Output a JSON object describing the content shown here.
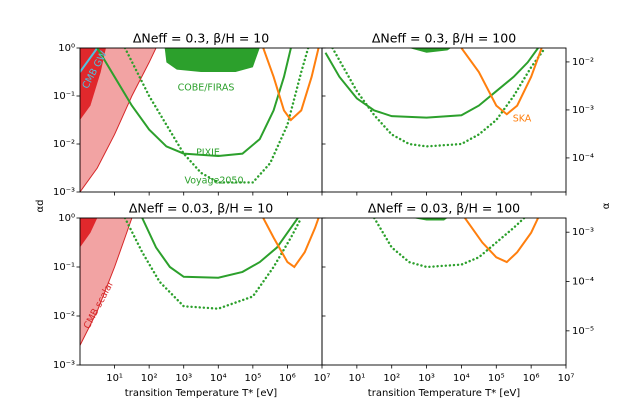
{
  "chart_data": [
    {
      "type": "line",
      "title": "ΔNeff = 0.3, β/H = 10",
      "ylabel": "αd",
      "xscale": "log",
      "yscale": "log",
      "xlim": [
        1,
        10000000.0
      ],
      "ylim": [
        0.001,
        1
      ],
      "xticks": [
        10,
        100,
        1000,
        10000.0,
        100000.0,
        1000000.0,
        10000000.0
      ],
      "yticks": [
        {
          "value": 1,
          "label": "10⁰"
        },
        {
          "value": 0.1,
          "label": "10⁻¹"
        },
        {
          "value": 0.01,
          "label": "10⁻²"
        },
        {
          "value": 0.001,
          "label": "10⁻³"
        }
      ],
      "series": [
        {
          "style": "fill",
          "color": "#f2a3a3",
          "edgecolor": "#d62728",
          "x": [
            1,
            3.16,
            10,
            31.6,
            100,
            158,
            1
          ],
          "values": [
            0.001,
            0.00316,
            0.0158,
            0.1,
            0.501,
            1,
            1
          ]
        },
        {
          "style": "fill",
          "color": "#e0282c",
          "x": [
            1,
            2,
            3.98,
            5.62,
            1
          ],
          "values": [
            0.0316,
            0.0631,
            0.316,
            1,
            1
          ]
        },
        {
          "name": "CMB GW",
          "style": "line",
          "color": "#4fc3e0",
          "x": [
            1,
            2,
            3.16
          ],
          "values": [
            0.316,
            0.631,
            1
          ]
        },
        {
          "name": "COBE/FIRAS",
          "style": "fill",
          "color": "#2ca02c",
          "x": [
            282,
            316,
            631,
            3160,
            31600,
            100000.0,
            158000.0
          ],
          "values": [
            1,
            0.501,
            0.355,
            0.316,
            0.316,
            0.398,
            1
          ]
        },
        {
          "name": "PIXIE",
          "style": "line",
          "color": "#2ca02c",
          "x": [
            3.16,
            10,
            31.6,
            100,
            316,
            1000,
            10000.0,
            50100.0,
            158000.0,
            398000.0,
            794000.0,
            1260000.0
          ],
          "values": [
            1,
            0.251,
            0.0631,
            0.02,
            0.00891,
            0.00631,
            0.00562,
            0.00631,
            0.0126,
            0.0501,
            0.251,
            1
          ]
        },
        {
          "name": "Voyage2050",
          "style": "dotted",
          "color": "#2ca02c",
          "x": [
            20,
            100,
            316,
            1000,
            3160,
            10000.0,
            100000.0,
            316000.0,
            1000000.0,
            2510000.0,
            3980000.0
          ],
          "values": [
            1,
            0.1,
            0.0251,
            0.00631,
            0.00251,
            0.00158,
            0.00158,
            0.00398,
            0.0251,
            0.316,
            1
          ]
        },
        {
          "style": "line",
          "color": "#ff7f0e",
          "x": [
            200000.0,
            398000.0,
            794000.0,
            1260000.0,
            2510000.0,
            5010000.0,
            7940000.0
          ],
          "values": [
            1,
            0.251,
            0.0501,
            0.0316,
            0.0501,
            0.251,
            1
          ]
        }
      ]
    },
    {
      "type": "line",
      "title": "ΔNeff = 0.3, β/H = 100",
      "y2label": "α",
      "xscale": "log",
      "yscale": "log",
      "xlim": [
        1,
        10000000.0
      ],
      "ylim": [
        0.001,
        1
      ],
      "y2lim": [
        1.95e-05,
        0.0195
      ],
      "xticks": [
        10,
        100,
        1000,
        10000.0,
        100000.0,
        1000000.0,
        10000000.0
      ],
      "yticks": [
        1,
        0.1,
        0.01,
        0.001
      ],
      "y2ticks": [
        {
          "value": 0.01,
          "label": "10⁻²"
        },
        {
          "value": 0.001,
          "label": "10⁻³"
        },
        {
          "value": 0.0001,
          "label": "10⁻⁴"
        }
      ],
      "series": [
        {
          "style": "fill",
          "color": "#2ca02c",
          "x": [
            316,
            1000,
            3980,
            5010
          ],
          "values": [
            1,
            0.794,
            0.891,
            1
          ]
        },
        {
          "style": "line",
          "color": "#2ca02c",
          "x": [
            1.26,
            3.16,
            10,
            31.6,
            100,
            1000,
            10000.0,
            31600.0,
            100000.0,
            316000.0,
            794000.0,
            1580000.0
          ],
          "values": [
            0.794,
            0.251,
            0.0891,
            0.0501,
            0.038,
            0.0355,
            0.0398,
            0.0631,
            0.126,
            0.251,
            0.501,
            1
          ]
        },
        {
          "style": "dotted",
          "color": "#2ca02c",
          "x": [
            2,
            10,
            31.6,
            100,
            316,
            1000,
            10000.0,
            31600.0,
            100000.0,
            316000.0,
            1000000.0,
            2510000.0
          ],
          "values": [
            1,
            0.126,
            0.0398,
            0.0158,
            0.01,
            0.00891,
            0.01,
            0.0158,
            0.0316,
            0.1,
            0.398,
            1
          ]
        },
        {
          "name": "SKA",
          "style": "line",
          "color": "#ff7f0e",
          "x": [
            10000.0,
            31600.0,
            100000.0,
            200000.0,
            398000.0,
            1000000.0,
            2000000.0
          ],
          "values": [
            1,
            0.316,
            0.0631,
            0.0417,
            0.0631,
            0.251,
            1
          ]
        }
      ]
    },
    {
      "type": "line",
      "title": "ΔNeff = 0.03, β/H = 10",
      "xlabel": "transition Temperature T* [eV]",
      "xscale": "log",
      "yscale": "log",
      "xlim": [
        1,
        10000000.0
      ],
      "ylim": [
        0.001,
        1
      ],
      "xticks": [
        {
          "value": 10,
          "label": "10¹"
        },
        {
          "value": 100,
          "label": "10²"
        },
        {
          "value": 1000,
          "label": "10³"
        },
        {
          "value": 10000.0,
          "label": "10⁴"
        },
        {
          "value": 100000.0,
          "label": "10⁵"
        },
        {
          "value": 1000000.0,
          "label": "10⁶"
        },
        {
          "value": 10000000.0,
          "label": "10⁷"
        }
      ],
      "yticks": [
        {
          "value": 1,
          "label": "10⁰"
        },
        {
          "value": 0.1,
          "label": "10⁻¹"
        },
        {
          "value": 0.01,
          "label": "10⁻²"
        },
        {
          "value": 0.001,
          "label": "10⁻³"
        }
      ],
      "series": [
        {
          "name": "CMB scalar",
          "style": "fill",
          "color": "#f2a3a3",
          "edgecolor": "#d62728",
          "x": [
            1,
            3.16,
            10,
            20,
            31.6,
            1
          ],
          "values": [
            0.00251,
            0.0126,
            0.1,
            0.398,
            1,
            1
          ]
        },
        {
          "style": "fill",
          "color": "#e0282c",
          "x": [
            1,
            2,
            3.16,
            1
          ],
          "values": [
            0.251,
            0.501,
            1,
            1
          ]
        },
        {
          "style": "line",
          "color": "#2ca02c",
          "x": [
            63.1,
            158,
            398,
            1000,
            10000.0,
            50100.0,
            158000.0,
            501000.0,
            1260000.0,
            2000000.0
          ],
          "values": [
            1,
            0.251,
            0.1,
            0.0631,
            0.0603,
            0.0794,
            0.126,
            0.251,
            0.631,
            1
          ]
        },
        {
          "style": "dotted",
          "color": "#2ca02c",
          "x": [
            20,
            63.1,
            200,
            1000,
            10000.0,
            100000.0,
            398000.0,
            1260000.0,
            2510000.0
          ],
          "values": [
            1,
            0.2,
            0.0501,
            0.0158,
            0.0141,
            0.0251,
            0.1,
            0.398,
            1
          ]
        },
        {
          "style": "line",
          "color": "#ff7f0e",
          "x": [
            200000.0,
            398000.0,
            1000000.0,
            1580000.0,
            3160000.0,
            6310000.0,
            7940000.0
          ],
          "values": [
            1,
            0.398,
            0.126,
            0.1,
            0.2,
            0.631,
            1
          ]
        }
      ]
    },
    {
      "type": "line",
      "title": "ΔNeff = 0.03, β/H = 100",
      "xlabel": "transition Temperature T* [eV]",
      "xscale": "log",
      "yscale": "log",
      "xlim": [
        1,
        10000000.0
      ],
      "ylim": [
        0.001,
        1
      ],
      "y2lim": [
        2.03e-06,
        0.00194
      ],
      "xticks": [
        {
          "value": 10,
          "label": "10¹"
        },
        {
          "value": 100,
          "label": "10²"
        },
        {
          "value": 1000,
          "label": "10³"
        },
        {
          "value": 10000.0,
          "label": "10⁴"
        },
        {
          "value": 100000.0,
          "label": "10⁵"
        },
        {
          "value": 1000000.0,
          "label": "10⁶"
        },
        {
          "value": 10000000.0,
          "label": "10⁷"
        }
      ],
      "yticks": [
        1,
        0.1,
        0.01,
        0.001
      ],
      "y2ticks": [
        {
          "value": 0.001,
          "label": "10⁻³"
        },
        {
          "value": 0.0001,
          "label": "10⁻⁴"
        },
        {
          "value": 1e-05,
          "label": "10⁻⁵"
        }
      ],
      "series": [
        {
          "style": "fill",
          "color": "#2ca02c",
          "x": [
            398,
            1000,
            3160,
            3980
          ],
          "values": [
            1,
            0.891,
            0.891,
            1
          ]
        },
        {
          "style": "dotted",
          "color": "#2ca02c",
          "x": [
            31.6,
            100,
            316,
            1000,
            10000.0,
            31600.0,
            100000.0,
            316000.0,
            631000.0
          ],
          "values": [
            1,
            0.251,
            0.126,
            0.1,
            0.112,
            0.158,
            0.316,
            0.631,
            1
          ]
        },
        {
          "style": "line",
          "color": "#ff7f0e",
          "x": [
            12600.0,
            39800.0,
            100000.0,
            200000.0,
            398000.0,
            1000000.0,
            1580000.0
          ],
          "values": [
            1,
            0.316,
            0.158,
            0.126,
            0.2,
            0.501,
            1
          ]
        }
      ]
    }
  ]
}
